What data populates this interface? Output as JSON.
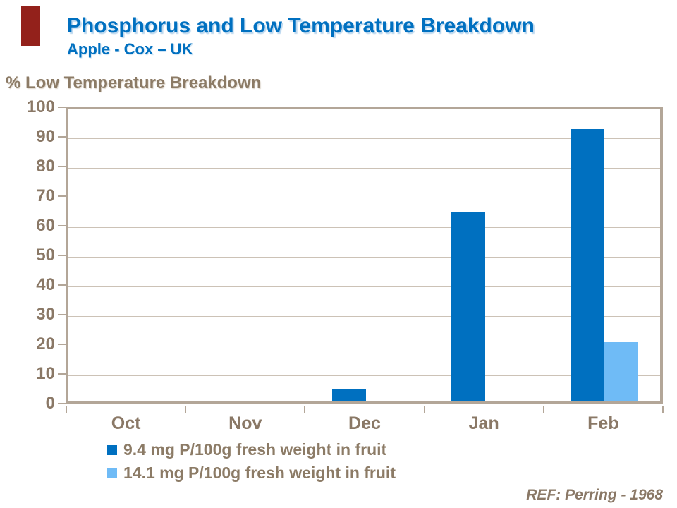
{
  "slide": {
    "title": "Phosphorus and Low Temperature Breakdown",
    "subtitle": "Apple - Cox – UK",
    "axis_header": "% Low Temperature Breakdown",
    "reference": "REF: Perring - 1968"
  },
  "colors": {
    "title_blue": "#0070c0",
    "accent_red": "#93211b",
    "label_taupe": "#8c7b66",
    "axis_line": "#b3a698",
    "gridline": "#ccc2b6"
  },
  "chart_data": {
    "type": "bar",
    "title": "% Low Temperature Breakdown",
    "categories": [
      "Oct",
      "Nov",
      "Dec",
      "Jan",
      "Feb"
    ],
    "series": [
      {
        "name": "9.4 mg P/100g fresh weight in fruit",
        "color": "#0070c0",
        "values": [
          0,
          0,
          4,
          64,
          92
        ]
      },
      {
        "name": "14.1 mg P/100g fresh weight in fruit",
        "color": "#6fbbf6",
        "values": [
          0,
          0,
          0,
          0,
          20
        ]
      }
    ],
    "xlabel": "",
    "ylabel": "% Low Temperature Breakdown",
    "ylim": [
      0,
      100
    ],
    "ytick_step": 10,
    "grid": true,
    "legend_position": "bottom-left"
  }
}
